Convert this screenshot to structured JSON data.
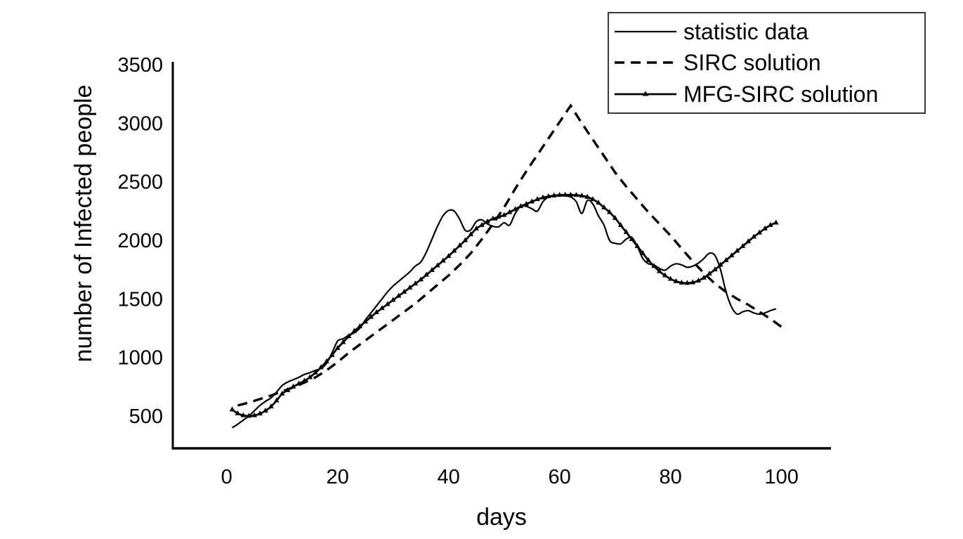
{
  "figure": {
    "background": "#ffffff",
    "axis_color": "#000000",
    "series_color": "#000000"
  },
  "chart_data": {
    "type": "line",
    "title": "",
    "xlabel": "days",
    "ylabel": "number of Infected people",
    "x_ticks": [
      0,
      20,
      40,
      60,
      80,
      100
    ],
    "y_ticks": [
      500,
      1000,
      1500,
      2000,
      2500,
      3000,
      3500
    ],
    "xlim": [
      -9.7,
      108.9
    ],
    "ylim": [
      224,
      3524
    ],
    "grid": false,
    "legend_position": "top-right",
    "series": [
      {
        "name": "statistic data",
        "style": "solid",
        "color": "#000000",
        "width": 2.2,
        "marker": "none",
        "points": [
          [
            1,
            400
          ],
          [
            2,
            430
          ],
          [
            3,
            465
          ],
          [
            4,
            500
          ],
          [
            5,
            545
          ],
          [
            6,
            590
          ],
          [
            7,
            625
          ],
          [
            8,
            655
          ],
          [
            9,
            705
          ],
          [
            10,
            760
          ],
          [
            11,
            790
          ],
          [
            12,
            810
          ],
          [
            13,
            830
          ],
          [
            14,
            855
          ],
          [
            15,
            870
          ],
          [
            16,
            890
          ],
          [
            17,
            905
          ],
          [
            18,
            950
          ],
          [
            19,
            1040
          ],
          [
            20,
            1140
          ],
          [
            21,
            1160
          ],
          [
            22,
            1190
          ],
          [
            23,
            1210
          ],
          [
            24,
            1250
          ],
          [
            25,
            1320
          ],
          [
            26,
            1380
          ],
          [
            27,
            1440
          ],
          [
            28,
            1500
          ],
          [
            29,
            1560
          ],
          [
            30,
            1610
          ],
          [
            31,
            1650
          ],
          [
            32,
            1690
          ],
          [
            33,
            1730
          ],
          [
            34,
            1780
          ],
          [
            35,
            1815
          ],
          [
            36,
            1900
          ],
          [
            37,
            2010
          ],
          [
            38,
            2120
          ],
          [
            39,
            2210
          ],
          [
            40,
            2255
          ],
          [
            41,
            2250
          ],
          [
            42,
            2180
          ],
          [
            43,
            2085
          ],
          [
            44,
            2090
          ],
          [
            45,
            2160
          ],
          [
            46,
            2175
          ],
          [
            47,
            2140
          ],
          [
            48,
            2120
          ],
          [
            49,
            2115
          ],
          [
            50,
            2150
          ],
          [
            51,
            2130
          ],
          [
            52,
            2230
          ],
          [
            53,
            2290
          ],
          [
            54,
            2290
          ],
          [
            55,
            2270
          ],
          [
            56,
            2250
          ],
          [
            57,
            2330
          ],
          [
            58,
            2370
          ],
          [
            59,
            2385
          ],
          [
            60,
            2385
          ],
          [
            61,
            2380
          ],
          [
            62,
            2370
          ],
          [
            63,
            2330
          ],
          [
            64,
            2230
          ],
          [
            65,
            2340
          ],
          [
            66,
            2310
          ],
          [
            67,
            2210
          ],
          [
            68,
            2130
          ],
          [
            69,
            2000
          ],
          [
            70,
            1975
          ],
          [
            71,
            1970
          ],
          [
            72,
            2010
          ],
          [
            73,
            2025
          ],
          [
            74,
            1950
          ],
          [
            75,
            1845
          ],
          [
            76,
            1800
          ],
          [
            77,
            1790
          ],
          [
            78,
            1760
          ],
          [
            79,
            1745
          ],
          [
            80,
            1780
          ],
          [
            81,
            1800
          ],
          [
            82,
            1790
          ],
          [
            83,
            1770
          ],
          [
            84,
            1780
          ],
          [
            85,
            1805
          ],
          [
            86,
            1845
          ],
          [
            87,
            1890
          ],
          [
            88,
            1870
          ],
          [
            89,
            1750
          ],
          [
            90,
            1560
          ],
          [
            91,
            1430
          ],
          [
            92,
            1370
          ],
          [
            93,
            1390
          ],
          [
            94,
            1400
          ],
          [
            95,
            1380
          ],
          [
            96,
            1370
          ],
          [
            97,
            1380
          ],
          [
            98,
            1400
          ],
          [
            99,
            1415
          ]
        ]
      },
      {
        "name": "SIRC solution",
        "style": "dashed",
        "color": "#000000",
        "width": 3.4,
        "marker": "none",
        "points": [
          [
            2,
            590
          ],
          [
            4,
            615
          ],
          [
            6,
            645
          ],
          [
            8,
            675
          ],
          [
            10,
            710
          ],
          [
            12,
            745
          ],
          [
            14,
            785
          ],
          [
            16,
            830
          ],
          [
            18,
            890
          ],
          [
            20,
            960
          ],
          [
            22,
            1040
          ],
          [
            24,
            1110
          ],
          [
            26,
            1180
          ],
          [
            28,
            1250
          ],
          [
            30,
            1320
          ],
          [
            32,
            1390
          ],
          [
            34,
            1460
          ],
          [
            36,
            1540
          ],
          [
            38,
            1620
          ],
          [
            40,
            1700
          ],
          [
            42,
            1790
          ],
          [
            44,
            1890
          ],
          [
            46,
            2010
          ],
          [
            48,
            2140
          ],
          [
            50,
            2280
          ],
          [
            52,
            2440
          ],
          [
            54,
            2590
          ],
          [
            56,
            2730
          ],
          [
            58,
            2870
          ],
          [
            60,
            3010
          ],
          [
            62,
            3150
          ],
          [
            64,
            3000
          ],
          [
            66,
            2860
          ],
          [
            68,
            2720
          ],
          [
            70,
            2580
          ],
          [
            72,
            2460
          ],
          [
            74,
            2350
          ],
          [
            76,
            2240
          ],
          [
            78,
            2140
          ],
          [
            80,
            2040
          ],
          [
            82,
            1930
          ],
          [
            84,
            1820
          ],
          [
            86,
            1720
          ],
          [
            88,
            1630
          ],
          [
            90,
            1560
          ],
          [
            92,
            1500
          ],
          [
            94,
            1450
          ],
          [
            96,
            1390
          ],
          [
            98,
            1330
          ],
          [
            100,
            1260
          ]
        ]
      },
      {
        "name": "MFG-SIRC solution",
        "style": "solid",
        "color": "#000000",
        "width": 2.8,
        "marker": "triangle",
        "points": [
          [
            1,
            555
          ],
          [
            2,
            522
          ],
          [
            3,
            505
          ],
          [
            4,
            500
          ],
          [
            5,
            505
          ],
          [
            6,
            520
          ],
          [
            7,
            545
          ],
          [
            8,
            580
          ],
          [
            9,
            632
          ],
          [
            10,
            690
          ],
          [
            11,
            720
          ],
          [
            12,
            750
          ],
          [
            13,
            775
          ],
          [
            14,
            800
          ],
          [
            15,
            830
          ],
          [
            16,
            870
          ],
          [
            17,
            915
          ],
          [
            18,
            965
          ],
          [
            19,
            1020
          ],
          [
            20,
            1080
          ],
          [
            21,
            1130
          ],
          [
            22,
            1180
          ],
          [
            23,
            1225
          ],
          [
            24,
            1265
          ],
          [
            25,
            1305
          ],
          [
            26,
            1345
          ],
          [
            27,
            1385
          ],
          [
            28,
            1420
          ],
          [
            29,
            1455
          ],
          [
            30,
            1490
          ],
          [
            31,
            1525
          ],
          [
            32,
            1560
          ],
          [
            33,
            1595
          ],
          [
            34,
            1630
          ],
          [
            35,
            1665
          ],
          [
            36,
            1705
          ],
          [
            37,
            1745
          ],
          [
            38,
            1785
          ],
          [
            39,
            1825
          ],
          [
            40,
            1865
          ],
          [
            41,
            1910
          ],
          [
            42,
            1955
          ],
          [
            43,
            2000
          ],
          [
            44,
            2050
          ],
          [
            45,
            2100
          ],
          [
            46,
            2130
          ],
          [
            47,
            2160
          ],
          [
            48,
            2185
          ],
          [
            49,
            2200
          ],
          [
            50,
            2215
          ],
          [
            51,
            2240
          ],
          [
            52,
            2265
          ],
          [
            53,
            2290
          ],
          [
            54,
            2310
          ],
          [
            55,
            2330
          ],
          [
            56,
            2350
          ],
          [
            57,
            2365
          ],
          [
            58,
            2375
          ],
          [
            59,
            2382
          ],
          [
            60,
            2386
          ],
          [
            61,
            2388
          ],
          [
            62,
            2388
          ],
          [
            63,
            2386
          ],
          [
            64,
            2380
          ],
          [
            65,
            2370
          ],
          [
            66,
            2350
          ],
          [
            67,
            2320
          ],
          [
            68,
            2280
          ],
          [
            69,
            2240
          ],
          [
            70,
            2190
          ],
          [
            71,
            2130
          ],
          [
            72,
            2070
          ],
          [
            73,
            2010
          ],
          [
            74,
            1950
          ],
          [
            75,
            1890
          ],
          [
            76,
            1830
          ],
          [
            77,
            1780
          ],
          [
            78,
            1735
          ],
          [
            79,
            1700
          ],
          [
            80,
            1670
          ],
          [
            81,
            1650
          ],
          [
            82,
            1638
          ],
          [
            83,
            1635
          ],
          [
            84,
            1640
          ],
          [
            85,
            1655
          ],
          [
            86,
            1680
          ],
          [
            87,
            1715
          ],
          [
            88,
            1750
          ],
          [
            89,
            1790
          ],
          [
            90,
            1830
          ],
          [
            91,
            1870
          ],
          [
            92,
            1910
          ],
          [
            93,
            1950
          ],
          [
            94,
            1990
          ],
          [
            95,
            2030
          ],
          [
            96,
            2065
          ],
          [
            97,
            2100
          ],
          [
            98,
            2130
          ],
          [
            99,
            2150
          ]
        ]
      }
    ]
  },
  "legend": {
    "items": [
      {
        "label": "statistic data"
      },
      {
        "label": "SIRC solution"
      },
      {
        "label": "MFG-SIRC solution"
      }
    ]
  }
}
